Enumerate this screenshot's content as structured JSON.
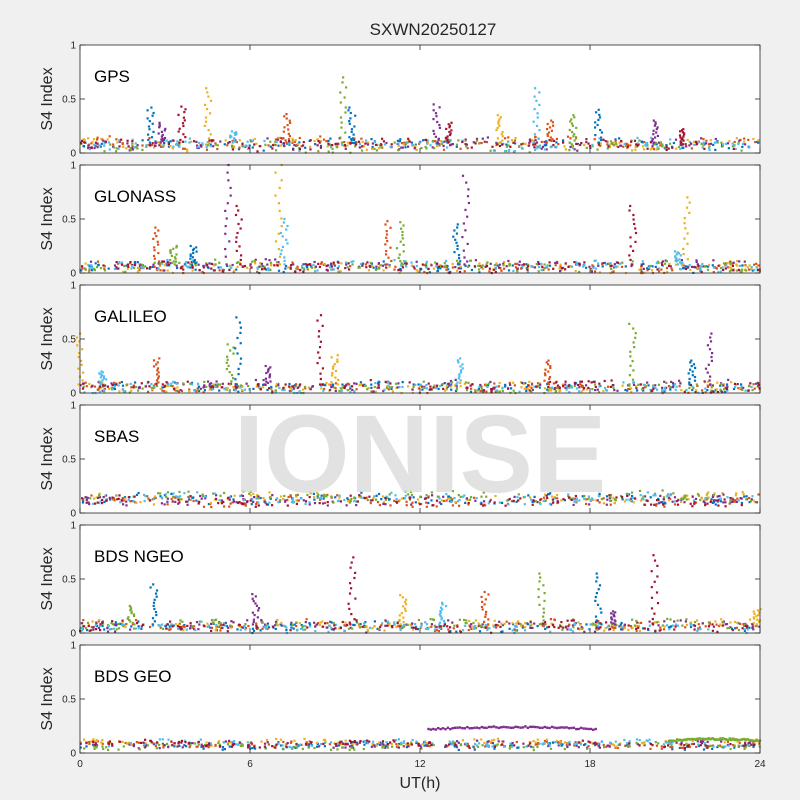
{
  "chart_data": {
    "type": "scatter",
    "title": "SXWN20250127",
    "xlabel": "UT(h)",
    "xlim": [
      0,
      24
    ],
    "xticks": [
      "0",
      "6",
      "12",
      "18",
      "24"
    ],
    "ylim": [
      0,
      1
    ],
    "yticks": [
      "0",
      "0.5",
      "1"
    ],
    "watermark": "IONISE",
    "colors": [
      "#0072BD",
      "#D95319",
      "#EDB120",
      "#7E2F8E",
      "#77AC30",
      "#4DBEEE",
      "#A2142F"
    ],
    "panels": [
      {
        "label": "GPS",
        "ylabel": "S4 Index",
        "baseline": [
          0.03,
          0.12
        ],
        "spikes": [
          [
            2.5,
            0.42
          ],
          [
            2.9,
            0.28
          ],
          [
            3.6,
            0.43
          ],
          [
            4.5,
            0.6
          ],
          [
            5.4,
            0.2
          ],
          [
            7.3,
            0.36
          ],
          [
            9.3,
            0.7
          ],
          [
            9.6,
            0.42
          ],
          [
            12.6,
            0.45
          ],
          [
            13.0,
            0.28
          ],
          [
            14.8,
            0.35
          ],
          [
            16.1,
            0.6
          ],
          [
            16.6,
            0.3
          ],
          [
            17.4,
            0.35
          ],
          [
            18.3,
            0.4
          ],
          [
            20.3,
            0.3
          ],
          [
            21.3,
            0.22
          ]
        ]
      },
      {
        "label": "GLONASS",
        "ylabel": "S4 Index",
        "baseline": [
          0.02,
          0.1
        ],
        "spikes": [
          [
            2.7,
            0.42
          ],
          [
            3.3,
            0.25
          ],
          [
            4.0,
            0.25
          ],
          [
            5.2,
            1.0
          ],
          [
            5.6,
            0.62
          ],
          [
            7.0,
            1.0
          ],
          [
            7.2,
            0.5
          ],
          [
            10.9,
            0.48
          ],
          [
            11.3,
            0.47
          ],
          [
            13.3,
            0.45
          ],
          [
            13.6,
            0.9
          ],
          [
            19.5,
            0.62
          ],
          [
            21.4,
            0.7
          ],
          [
            21.1,
            0.2
          ]
        ]
      },
      {
        "label": "GALILEO",
        "ylabel": "S4 Index",
        "baseline": [
          0.02,
          0.1
        ],
        "spikes": [
          [
            0.0,
            0.55
          ],
          [
            0.8,
            0.2
          ],
          [
            2.7,
            0.32
          ],
          [
            5.3,
            0.45
          ],
          [
            5.6,
            0.7
          ],
          [
            6.6,
            0.25
          ],
          [
            8.5,
            0.72
          ],
          [
            9.0,
            0.35
          ],
          [
            13.4,
            0.32
          ],
          [
            16.5,
            0.3
          ],
          [
            19.5,
            0.64
          ],
          [
            21.6,
            0.3
          ],
          [
            22.2,
            0.55
          ]
        ]
      },
      {
        "label": "SBAS",
        "ylabel": "S4 Index",
        "baseline": [
          0.09,
          0.17
        ],
        "spikes": []
      },
      {
        "label": "BDS NGEO",
        "ylabel": "S4 Index",
        "baseline": [
          0.02,
          0.1
        ],
        "spikes": [
          [
            1.8,
            0.25
          ],
          [
            2.6,
            0.45
          ],
          [
            6.2,
            0.36
          ],
          [
            9.6,
            0.7
          ],
          [
            11.4,
            0.35
          ],
          [
            12.8,
            0.28
          ],
          [
            14.3,
            0.38
          ],
          [
            16.3,
            0.55
          ],
          [
            18.3,
            0.55
          ],
          [
            18.8,
            0.2
          ],
          [
            20.3,
            0.72
          ],
          [
            23.9,
            0.22
          ]
        ]
      },
      {
        "label": "BDS GEO",
        "ylabel": "S4 Index",
        "baseline": [
          0.06,
          0.1
        ],
        "spikes": [],
        "segments": [
          {
            "x": [
              12.3,
              18.2
            ],
            "y": [
              0.2,
              0.24
            ],
            "color": "#7E2F8E"
          },
          {
            "x": [
              20.8,
              24
            ],
            "y": [
              0.1,
              0.13
            ],
            "color": "#77AC30"
          }
        ]
      }
    ]
  }
}
